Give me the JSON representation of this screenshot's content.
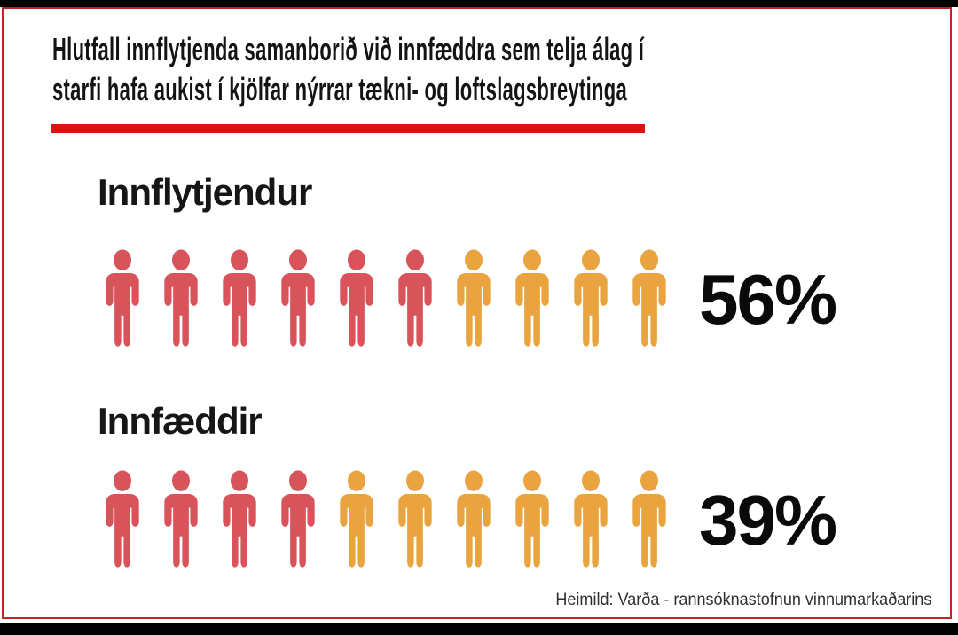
{
  "title": {
    "line1": "Hlutfall innflytjenda samanborið við innfæddra sem telja álag í",
    "line2": "starfi hafa aukist í kjölfar nýrrar tækni- og loftslagsbreytinga"
  },
  "rows": [
    {
      "label": "Innflytjendur",
      "percent_label": "56%",
      "icons": {
        "total": 10,
        "highlighted": 6
      }
    },
    {
      "label": "Innfæddir",
      "percent_label": "39%",
      "icons": {
        "total": 10,
        "highlighted": 4
      }
    }
  ],
  "source": "Heimild: Varða - rannsóknastofnun vinnumarkaðarins",
  "colors": {
    "person_highlight_red": "#d8545a",
    "person_base_orange": "#e9a440",
    "underline_red": "#dc1313",
    "frame_red": "#c42128",
    "letterbox_black": "#000000"
  },
  "chart_data": {
    "type": "bar",
    "subtype": "pictogram",
    "title": "Hlutfall innflytjenda samanborið við innfæddra sem telja álag í starfi hafa aukist í kjölfar nýrrar tækni- og loftslagsbreytinga",
    "categories": [
      "Innflytjendur",
      "Innfæddir"
    ],
    "values": [
      56,
      39
    ],
    "units": "%",
    "icons_per_row": 10,
    "icons_highlighted_per_row": [
      6,
      4
    ],
    "legend": "off",
    "axes": "off",
    "source": "Heimild: Varða - rannsóknastofnun vinnumarkaðarins"
  }
}
